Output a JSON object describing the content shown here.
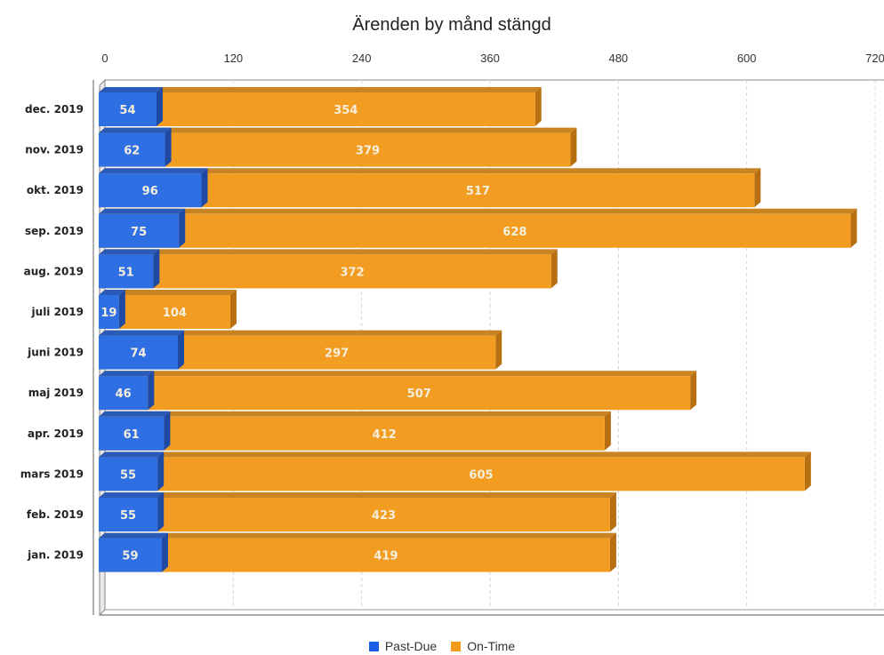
{
  "chart_data": {
    "type": "bar",
    "orientation": "horizontal",
    "stacked": true,
    "title": "Ärenden by månd stängd",
    "xlabel": "",
    "ylabel": "",
    "xlim": [
      0,
      720
    ],
    "ticks": [
      "0",
      "120",
      "240",
      "360",
      "480",
      "600",
      "720"
    ],
    "grid": true,
    "legend_position": "bottom",
    "categories": [
      "dec. 2019",
      "nov. 2019",
      "okt. 2019",
      "sep. 2019",
      "aug. 2019",
      "juli 2019",
      "juni 2019",
      "maj 2019",
      "apr. 2019",
      "mars 2019",
      "feb. 2019",
      "jan. 2019"
    ],
    "series": [
      {
        "name": "Past-Due",
        "color": "#2f6fe4",
        "values": [
          54,
          62,
          96,
          75,
          51,
          19,
          74,
          46,
          61,
          55,
          55,
          59
        ]
      },
      {
        "name": "On-Time",
        "color": "#f29d22",
        "values": [
          354,
          379,
          517,
          628,
          372,
          104,
          297,
          507,
          412,
          605,
          423,
          419
        ]
      }
    ]
  }
}
